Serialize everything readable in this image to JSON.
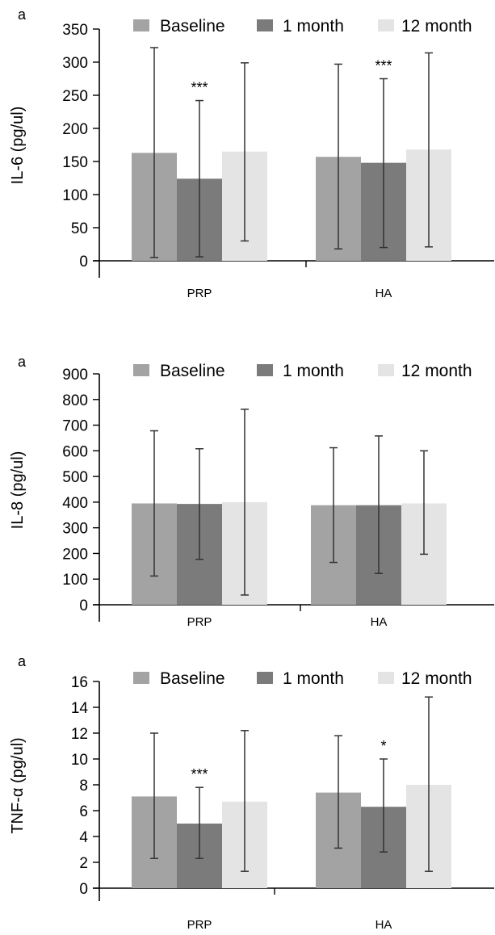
{
  "chart_data": [
    {
      "type": "bar",
      "panel_label": "a",
      "categories": [
        "PRP",
        "HA"
      ],
      "ylabel": "IL-6 (pg/ul)",
      "ylim": [
        0,
        350
      ],
      "yticks": [
        0,
        50,
        100,
        150,
        200,
        250,
        300,
        350
      ],
      "series": [
        {
          "name": "Baseline",
          "color": "#a3a3a3",
          "values": [
            163,
            157
          ],
          "err_low": [
            5,
            18
          ],
          "err_high": [
            322,
            297
          ]
        },
        {
          "name": "1 month",
          "color": "#7b7b7b",
          "values": [
            124,
            148
          ],
          "err_low": [
            6,
            20
          ],
          "err_high": [
            242,
            275
          ]
        },
        {
          "name": "12 month",
          "color": "#e4e4e4",
          "values": [
            165,
            168
          ],
          "err_low": [
            30,
            21
          ],
          "err_high": [
            299,
            314
          ]
        }
      ],
      "annotations": [
        {
          "category": 0,
          "series": 1,
          "text": "***"
        },
        {
          "category": 1,
          "series": 1,
          "text": "***"
        }
      ],
      "legend": "top"
    },
    {
      "type": "bar",
      "panel_label": "a",
      "categories": [
        "PRP",
        "HA"
      ],
      "ylabel": "IL-8 (pg/ul)",
      "ylim": [
        0,
        900
      ],
      "yticks": [
        0,
        100,
        200,
        300,
        400,
        500,
        600,
        700,
        800,
        900
      ],
      "series": [
        {
          "name": "Baseline",
          "color": "#a3a3a3",
          "values": [
            395,
            388
          ],
          "err_low": [
            112,
            165
          ],
          "err_high": [
            678,
            612
          ]
        },
        {
          "name": "1 month",
          "color": "#7b7b7b",
          "values": [
            393,
            388
          ],
          "err_low": [
            177,
            122
          ],
          "err_high": [
            608,
            658
          ]
        },
        {
          "name": "12 month",
          "color": "#e4e4e4",
          "values": [
            400,
            395
          ],
          "err_low": [
            38,
            197
          ],
          "err_high": [
            762,
            600
          ]
        }
      ],
      "annotations": [],
      "legend": "top"
    },
    {
      "type": "bar",
      "panel_label": "a",
      "categories": [
        "PRP",
        "HA"
      ],
      "ylabel": "TNF-α (pg/ul)",
      "ylim": [
        0,
        16
      ],
      "yticks": [
        0,
        2,
        4,
        6,
        8,
        10,
        12,
        14,
        16
      ],
      "series": [
        {
          "name": "Baseline",
          "color": "#a3a3a3",
          "values": [
            7.1,
            7.4
          ],
          "err_low": [
            2.3,
            3.1
          ],
          "err_high": [
            12.0,
            11.8
          ]
        },
        {
          "name": "1 month",
          "color": "#7b7b7b",
          "values": [
            5.0,
            6.3
          ],
          "err_low": [
            2.3,
            2.8
          ],
          "err_high": [
            7.8,
            10.0
          ]
        },
        {
          "name": "12 month",
          "color": "#e4e4e4",
          "values": [
            6.7,
            8.0
          ],
          "err_low": [
            1.3,
            1.3
          ],
          "err_high": [
            12.2,
            14.8
          ]
        }
      ],
      "annotations": [
        {
          "category": 0,
          "series": 1,
          "text": "***"
        },
        {
          "category": 1,
          "series": 1,
          "text": "*"
        }
      ],
      "legend": "top"
    }
  ]
}
